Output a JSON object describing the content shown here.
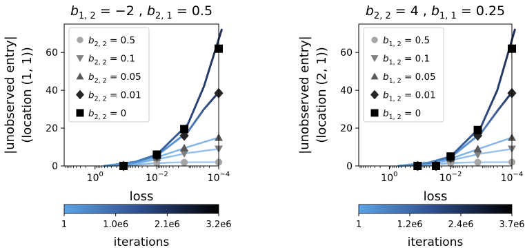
{
  "chart_data": [
    {
      "type": "line",
      "title": "b_{1,2} = −2 , b_{2,1} = 0.5",
      "title_parts": {
        "s1": "1, 2",
        "mid": " = −2 , ",
        "s2": "2, 1",
        "end": " = 0.5"
      },
      "xlabel": "loss",
      "ylabel_lines": [
        "|unobserved entry|",
        "(location (1, 1))"
      ],
      "x_scale": "log",
      "x_reversed": true,
      "xlim": [
        10,
        0.0001
      ],
      "ylim": [
        0,
        75
      ],
      "x_ticks": [
        {
          "v": 1,
          "e": "0"
        },
        {
          "v": 0.01,
          "e": "−2"
        },
        {
          "v": 0.0001,
          "e": "−4"
        }
      ],
      "y_ticks": [
        0,
        20,
        40,
        60
      ],
      "legend_position": "upper-left",
      "series": [
        {
          "name": "b_{2,2} = 0.5",
          "legend_var": "2, 2",
          "legend_val": " = 0.5",
          "marker": "circle",
          "marker_color": "#a6a6a6",
          "points": [
            {
              "loss": 0.12,
              "value": 0
            },
            {
              "loss": 0.01,
              "value": 1.6
            },
            {
              "loss": 0.0013,
              "value": 1.9
            },
            {
              "loss": 0.0001,
              "value": 2.0
            }
          ],
          "curve": [
            {
              "loss": 0.5,
              "value": 0
            },
            {
              "loss": 0.05,
              "value": 0.6
            },
            {
              "loss": 0.01,
              "value": 1.5
            },
            {
              "loss": 0.002,
              "value": 1.9
            },
            {
              "loss": 0.0001,
              "value": 2.0
            }
          ]
        },
        {
          "name": "b_{2,2} = 0.1",
          "legend_var": "2, 2",
          "legend_val": " = 0.1",
          "marker": "triangle-down",
          "marker_color": "#7f7f7f",
          "points": [
            {
              "loss": 0.12,
              "value": 0
            },
            {
              "loss": 0.01,
              "value": 3.5
            },
            {
              "loss": 0.0013,
              "value": 6.5
            },
            {
              "loss": 0.0001,
              "value": 9.0
            }
          ],
          "curve": [
            {
              "loss": 0.5,
              "value": 0
            },
            {
              "loss": 0.05,
              "value": 1.2
            },
            {
              "loss": 0.01,
              "value": 3.5
            },
            {
              "loss": 0.001,
              "value": 6.8
            },
            {
              "loss": 0.0001,
              "value": 9.0
            }
          ]
        },
        {
          "name": "b_{2,2} = 0.05",
          "legend_var": "2, 2",
          "legend_val": " = 0.05",
          "marker": "triangle-up",
          "marker_color": "#595959",
          "points": [
            {
              "loss": 0.12,
              "value": 0
            },
            {
              "loss": 0.01,
              "value": 4.5
            },
            {
              "loss": 0.0013,
              "value": 9.5
            },
            {
              "loss": 0.0001,
              "value": 15.0
            }
          ],
          "curve": [
            {
              "loss": 0.5,
              "value": 0
            },
            {
              "loss": 0.05,
              "value": 1.5
            },
            {
              "loss": 0.01,
              "value": 4.5
            },
            {
              "loss": 0.001,
              "value": 10.0
            },
            {
              "loss": 0.0001,
              "value": 15.0
            }
          ]
        },
        {
          "name": "b_{2,2} = 0.01",
          "legend_var": "2, 2",
          "legend_val": " = 0.01",
          "marker": "diamond",
          "marker_color": "#262626",
          "points": [
            {
              "loss": 0.12,
              "value": 0
            },
            {
              "loss": 0.01,
              "value": 5.5
            },
            {
              "loss": 0.0013,
              "value": 16.0
            },
            {
              "loss": 0.0001,
              "value": 38.5
            }
          ],
          "curve": [
            {
              "loss": 0.5,
              "value": 0
            },
            {
              "loss": 0.05,
              "value": 2.0
            },
            {
              "loss": 0.01,
              "value": 5.5
            },
            {
              "loss": 0.001,
              "value": 18.0
            },
            {
              "loss": 0.0003,
              "value": 30.0
            },
            {
              "loss": 0.0001,
              "value": 39.0
            }
          ]
        },
        {
          "name": "b_{2,2} = 0",
          "legend_var": "2, 2",
          "legend_val": " = 0",
          "marker": "square",
          "marker_color": "#000000",
          "points": [
            {
              "loss": 0.12,
              "value": 0
            },
            {
              "loss": 0.01,
              "value": 6.0
            },
            {
              "loss": 0.0013,
              "value": 19.5
            },
            {
              "loss": 0.0001,
              "value": 62.0
            }
          ],
          "curve": [
            {
              "loss": 0.5,
              "value": 0
            },
            {
              "loss": 0.05,
              "value": 2.2
            },
            {
              "loss": 0.01,
              "value": 6.0
            },
            {
              "loss": 0.001,
              "value": 22.0
            },
            {
              "loss": 0.0003,
              "value": 42.0
            },
            {
              "loss": 8e-05,
              "value": 72.0
            }
          ]
        }
      ],
      "colorbar": {
        "label": "iterations",
        "ticks": [
          "1",
          "1.0e6",
          "2.1e6",
          "3.2e6"
        ],
        "colors": [
          "#5ba4e6",
          "#2d4c8c",
          "#000000"
        ]
      }
    },
    {
      "type": "line",
      "title": "b_{2,2} = 4 , b_{1,1} = 0.25",
      "title_parts": {
        "s1": "2, 2",
        "mid": " = 4 , ",
        "s2": "1, 1",
        "end": " = 0.25"
      },
      "xlabel": "loss",
      "ylabel_lines": [
        "|unobserved entry|",
        "(location (2, 1))"
      ],
      "x_scale": "log",
      "x_reversed": true,
      "xlim": [
        10,
        0.0001
      ],
      "ylim": [
        0,
        75
      ],
      "x_ticks": [
        {
          "v": 1,
          "e": "0"
        },
        {
          "v": 0.01,
          "e": "−2"
        },
        {
          "v": 0.0001,
          "e": "−4"
        }
      ],
      "y_ticks": [
        0,
        20,
        40,
        60
      ],
      "legend_position": "upper-left",
      "series": [
        {
          "name": "b_{1,2} = 0.5",
          "legend_var": "1, 2",
          "legend_val": " = 0.5",
          "marker": "circle",
          "marker_color": "#a6a6a6",
          "points": [
            {
              "loss": 0.12,
              "value": 0
            },
            {
              "loss": 0.03,
              "value": 0
            },
            {
              "loss": 0.01,
              "value": 1.5
            },
            {
              "loss": 0.0013,
              "value": 1.9
            },
            {
              "loss": 0.0001,
              "value": 2.0
            }
          ],
          "curve": [
            {
              "loss": 0.5,
              "value": 0
            },
            {
              "loss": 0.05,
              "value": 0.5
            },
            {
              "loss": 0.01,
              "value": 1.5
            },
            {
              "loss": 0.002,
              "value": 1.9
            },
            {
              "loss": 0.0001,
              "value": 2.0
            }
          ]
        },
        {
          "name": "b_{1,2} = 0.1",
          "legend_var": "1, 2",
          "legend_val": " = 0.1",
          "marker": "triangle-down",
          "marker_color": "#7f7f7f",
          "points": [
            {
              "loss": 0.12,
              "value": 0
            },
            {
              "loss": 0.03,
              "value": 0
            },
            {
              "loss": 0.01,
              "value": 3.0
            },
            {
              "loss": 0.0013,
              "value": 6.0
            },
            {
              "loss": 0.0001,
              "value": 9.0
            }
          ],
          "curve": [
            {
              "loss": 0.5,
              "value": 0
            },
            {
              "loss": 0.05,
              "value": 1.0
            },
            {
              "loss": 0.01,
              "value": 3.0
            },
            {
              "loss": 0.001,
              "value": 6.5
            },
            {
              "loss": 0.0001,
              "value": 9.0
            }
          ]
        },
        {
          "name": "b_{1,2} = 0.05",
          "legend_var": "1, 2",
          "legend_val": " = 0.05",
          "marker": "triangle-up",
          "marker_color": "#595959",
          "points": [
            {
              "loss": 0.12,
              "value": 0
            },
            {
              "loss": 0.03,
              "value": 0
            },
            {
              "loss": 0.01,
              "value": 3.8
            },
            {
              "loss": 0.0013,
              "value": 9.0
            },
            {
              "loss": 0.0001,
              "value": 15.0
            }
          ],
          "curve": [
            {
              "loss": 0.5,
              "value": 0
            },
            {
              "loss": 0.05,
              "value": 1.2
            },
            {
              "loss": 0.01,
              "value": 3.8
            },
            {
              "loss": 0.001,
              "value": 9.5
            },
            {
              "loss": 0.0001,
              "value": 15.0
            }
          ]
        },
        {
          "name": "b_{1,2} = 0.01",
          "legend_var": "1, 2",
          "legend_val": " = 0.01",
          "marker": "diamond",
          "marker_color": "#262626",
          "points": [
            {
              "loss": 0.12,
              "value": 0
            },
            {
              "loss": 0.03,
              "value": 0
            },
            {
              "loss": 0.01,
              "value": 4.5
            },
            {
              "loss": 0.0013,
              "value": 16.0
            },
            {
              "loss": 0.0001,
              "value": 38.5
            }
          ],
          "curve": [
            {
              "loss": 0.5,
              "value": 0
            },
            {
              "loss": 0.05,
              "value": 1.5
            },
            {
              "loss": 0.01,
              "value": 4.5
            },
            {
              "loss": 0.001,
              "value": 17.5
            },
            {
              "loss": 0.0003,
              "value": 29.0
            },
            {
              "loss": 0.0001,
              "value": 39.0
            }
          ]
        },
        {
          "name": "b_{1,2} = 0",
          "legend_var": "1, 2",
          "legend_val": " = 0",
          "marker": "square",
          "marker_color": "#000000",
          "points": [
            {
              "loss": 0.12,
              "value": 0
            },
            {
              "loss": 0.03,
              "value": 0
            },
            {
              "loss": 0.01,
              "value": 5.0
            },
            {
              "loss": 0.0013,
              "value": 19.0
            },
            {
              "loss": 0.0001,
              "value": 62.0
            }
          ],
          "curve": [
            {
              "loss": 0.5,
              "value": 0
            },
            {
              "loss": 0.05,
              "value": 1.8
            },
            {
              "loss": 0.01,
              "value": 5.0
            },
            {
              "loss": 0.001,
              "value": 21.0
            },
            {
              "loss": 0.0003,
              "value": 40.0
            },
            {
              "loss": 8e-05,
              "value": 72.0
            }
          ]
        }
      ],
      "colorbar": {
        "label": "iterations",
        "ticks": [
          "1",
          "1.2e6",
          "2.4e6",
          "3.7e6"
        ],
        "colors": [
          "#5ba4e6",
          "#2d4c8c",
          "#000000"
        ]
      }
    }
  ]
}
